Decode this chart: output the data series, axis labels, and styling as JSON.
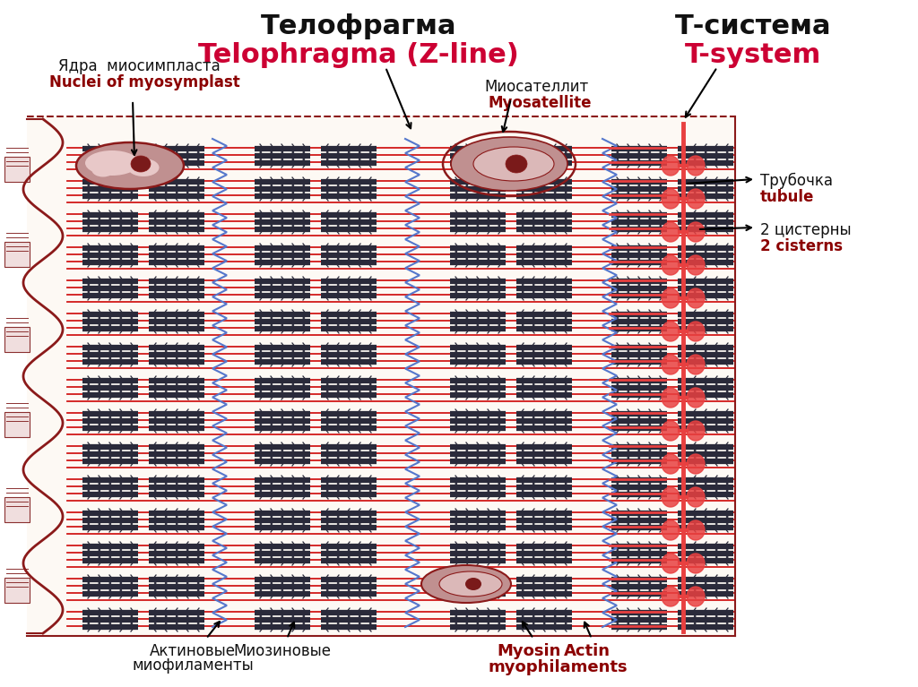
{
  "title_telo_ru": "Телофрагма",
  "title_telo_en": "Telophragma (Z-line)",
  "title_tsys_ru": "Т-система",
  "title_tsys_en": "T-system",
  "label_nuclei_ru": "Ядра  миосимпласта",
  "label_nuclei_en": "Nuclei of myosymplast",
  "label_myosat_ru": "Миосателлит",
  "label_myosat_en": "Myosatellite",
  "label_tubule_ru": "Трубочка",
  "label_tubule_en": "tubule",
  "label_cisterns_ru": "2 цистерны",
  "label_cisterns_en": "2 cisterns",
  "label_actin_ru": "Актиновые",
  "label_actin_ru2": "миофиламенты",
  "label_myosin_ru": "Миозиновые",
  "label_myosin_en": "Myosin",
  "label_actin_en": "Actin",
  "label_myophil_en": "myophilaments",
  "bg_color": "#ffffff",
  "sarcolemma_color": "#8B1A1A",
  "actin_color": "#cc0000",
  "myosin_color": "#2a2a3a",
  "z_line_color": "#4169c0",
  "t_system_color": "#e84040",
  "text_color_black": "#111111",
  "text_color_red": "#8B0000",
  "text_color_crimson": "#cc0033"
}
